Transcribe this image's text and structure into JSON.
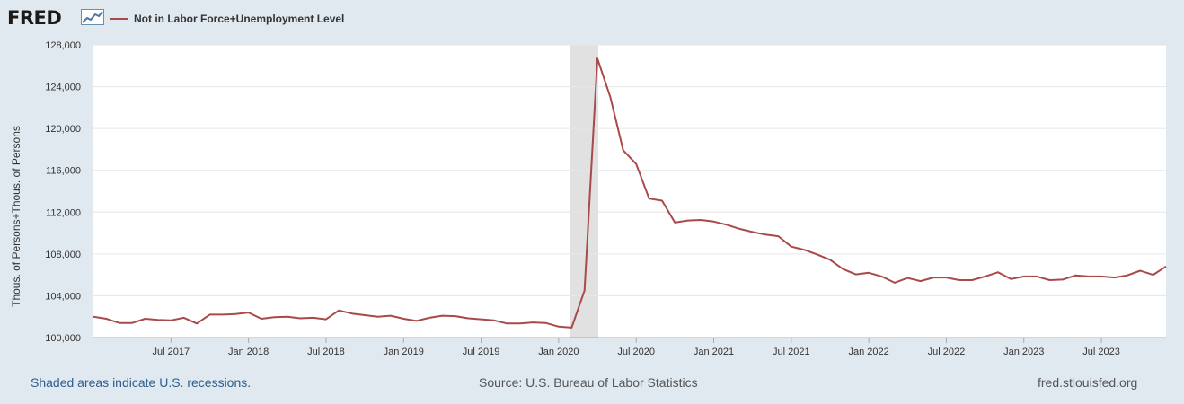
{
  "header": {
    "logo_text": "FRED",
    "logo_icon": "chart-line-icon"
  },
  "chart_data": {
    "type": "line",
    "series": [
      {
        "name": "Not in Labor Force+Unemployment Level",
        "color": "#a94a4a",
        "x": [
          "2017-01",
          "2017-02",
          "2017-03",
          "2017-04",
          "2017-05",
          "2017-06",
          "2017-07",
          "2017-08",
          "2017-09",
          "2017-10",
          "2017-11",
          "2017-12",
          "2018-01",
          "2018-02",
          "2018-03",
          "2018-04",
          "2018-05",
          "2018-06",
          "2018-07",
          "2018-08",
          "2018-09",
          "2018-10",
          "2018-11",
          "2018-12",
          "2019-01",
          "2019-02",
          "2019-03",
          "2019-04",
          "2019-05",
          "2019-06",
          "2019-07",
          "2019-08",
          "2019-09",
          "2019-10",
          "2019-11",
          "2019-12",
          "2020-01",
          "2020-02",
          "2020-03",
          "2020-04",
          "2020-05",
          "2020-06",
          "2020-07",
          "2020-08",
          "2020-09",
          "2020-10",
          "2020-11",
          "2020-12",
          "2021-01",
          "2021-02",
          "2021-03",
          "2021-04",
          "2021-05",
          "2021-06",
          "2021-07",
          "2021-08",
          "2021-09",
          "2021-10",
          "2021-11",
          "2021-12",
          "2022-01",
          "2022-02",
          "2022-03",
          "2022-04",
          "2022-05",
          "2022-06",
          "2022-07",
          "2022-08",
          "2022-09",
          "2022-10",
          "2022-11",
          "2022-12",
          "2023-01",
          "2023-02",
          "2023-03",
          "2023-04",
          "2023-05",
          "2023-06",
          "2023-07",
          "2023-08",
          "2023-09",
          "2023-10",
          "2023-11",
          "2023-12"
        ],
        "values": [
          102000,
          101800,
          101400,
          101400,
          101800,
          101700,
          101650,
          101900,
          101350,
          102200,
          102200,
          102250,
          102400,
          101800,
          101950,
          102000,
          101850,
          101900,
          101750,
          102600,
          102300,
          102150,
          102000,
          102100,
          101800,
          101600,
          101900,
          102100,
          102050,
          101850,
          101750,
          101650,
          101350,
          101350,
          101450,
          101400,
          101050,
          100950,
          104500,
          126700,
          123000,
          117900,
          116600,
          113300,
          113100,
          111000,
          111200,
          111250,
          111100,
          110800,
          110400,
          110100,
          109850,
          109700,
          108700,
          108400,
          107950,
          107450,
          106550,
          106050,
          106200,
          105850,
          105250,
          105700,
          105400,
          105750,
          105750,
          105500,
          105500,
          105850,
          106250,
          105600,
          105850,
          105850,
          105500,
          105550,
          105950,
          105850,
          105850,
          105750,
          105950,
          106400,
          106000,
          106800
        ]
      }
    ],
    "xlabel": "",
    "ylabel": "Thous. of Persons+Thous. of Persons",
    "ylim": [
      100000,
      128000
    ],
    "yticks": [
      "100,000",
      "104,000",
      "108,000",
      "112,000",
      "116,000",
      "120,000",
      "124,000",
      "128,000"
    ],
    "xticks": [
      {
        "label": "Jul 2017",
        "date": "2017-07"
      },
      {
        "label": "Jan 2018",
        "date": "2018-01"
      },
      {
        "label": "Jul 2018",
        "date": "2018-07"
      },
      {
        "label": "Jan 2019",
        "date": "2019-01"
      },
      {
        "label": "Jul 2019",
        "date": "2019-07"
      },
      {
        "label": "Jan 2020",
        "date": "2020-01"
      },
      {
        "label": "Jul 2020",
        "date": "2020-07"
      },
      {
        "label": "Jan 2021",
        "date": "2021-01"
      },
      {
        "label": "Jul 2021",
        "date": "2021-07"
      },
      {
        "label": "Jan 2022",
        "date": "2022-01"
      },
      {
        "label": "Jul 2022",
        "date": "2022-07"
      },
      {
        "label": "Jan 2023",
        "date": "2023-01"
      },
      {
        "label": "Jul 2023",
        "date": "2023-07"
      }
    ],
    "recessions": [
      {
        "start": "2020-02",
        "end": "2020-04"
      }
    ],
    "grid": true
  },
  "footer": {
    "note": "Shaded areas indicate U.S. recessions.",
    "source": "Source: U.S. Bureau of Labor Statistics",
    "site": "fred.stlouisfed.org"
  }
}
